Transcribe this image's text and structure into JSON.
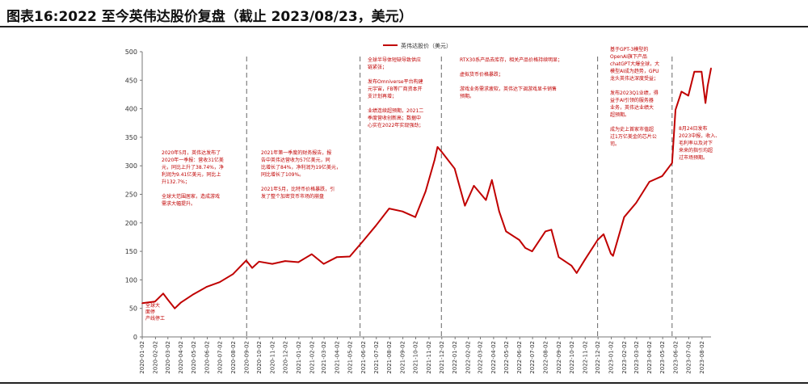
{
  "title": "图表16:2022 至今英伟达股价复盘（截止 2023/08/23，美元）",
  "chart_data": {
    "type": "line",
    "series": [
      {
        "name": "英伟达股价（美元）",
        "color": "#c00000"
      }
    ],
    "ylim": [
      0,
      500
    ],
    "yticks": [
      0,
      50,
      100,
      150,
      200,
      250,
      300,
      350,
      400,
      450,
      500
    ],
    "x_tick_labels": [
      "2020-01-02",
      "2020-02-02",
      "2020-03-02",
      "2020-04-02",
      "2020-05-02",
      "2020-06-02",
      "2020-07-02",
      "2020-08-02",
      "2020-09-02",
      "2020-10-02",
      "2020-11-02",
      "2020-12-02",
      "2021-01-02",
      "2021-02-02",
      "2021-03-02",
      "2021-04-02",
      "2021-05-02",
      "2021-06-02",
      "2021-07-02",
      "2021-08-02",
      "2021-09-02",
      "2021-10-02",
      "2021-11-02",
      "2021-12-02",
      "2022-01-02",
      "2022-02-02",
      "2022-03-02",
      "2022-04-02",
      "2022-05-02",
      "2022-06-02",
      "2022-07-02",
      "2022-08-02",
      "2022-09-02",
      "2022-10-02",
      "2022-11-02",
      "2022-12-02",
      "2023-01-02",
      "2023-02-02",
      "2023-03-02",
      "2023-04-02",
      "2023-05-02",
      "2023-06-02",
      "2023-07-02",
      "2023-08-02"
    ],
    "points": [
      [
        "2020-01-02",
        59
      ],
      [
        "2020-02-01",
        62
      ],
      [
        "2020-02-20",
        76
      ],
      [
        "2020-03-01",
        66
      ],
      [
        "2020-03-18",
        50
      ],
      [
        "2020-04-01",
        60
      ],
      [
        "2020-05-01",
        75
      ],
      [
        "2020-06-01",
        88
      ],
      [
        "2020-07-01",
        96
      ],
      [
        "2020-08-01",
        110
      ],
      [
        "2020-09-01",
        134
      ],
      [
        "2020-09-15",
        121
      ],
      [
        "2020-10-01",
        132
      ],
      [
        "2020-11-01",
        128
      ],
      [
        "2020-12-01",
        133
      ],
      [
        "2021-01-01",
        131
      ],
      [
        "2021-02-01",
        145
      ],
      [
        "2021-03-01",
        128
      ],
      [
        "2021-04-01",
        140
      ],
      [
        "2021-05-01",
        141
      ],
      [
        "2021-06-01",
        168
      ],
      [
        "2021-07-01",
        195
      ],
      [
        "2021-08-01",
        225
      ],
      [
        "2021-09-01",
        220
      ],
      [
        "2021-10-01",
        210
      ],
      [
        "2021-10-25",
        255
      ],
      [
        "2021-11-15",
        310
      ],
      [
        "2021-11-22",
        333
      ],
      [
        "2021-12-01",
        325
      ],
      [
        "2022-01-01",
        295
      ],
      [
        "2022-01-25",
        230
      ],
      [
        "2022-02-15",
        265
      ],
      [
        "2022-03-15",
        240
      ],
      [
        "2022-03-29",
        275
      ],
      [
        "2022-04-15",
        220
      ],
      [
        "2022-05-01",
        185
      ],
      [
        "2022-06-01",
        170
      ],
      [
        "2022-06-15",
        156
      ],
      [
        "2022-07-01",
        150
      ],
      [
        "2022-08-01",
        185
      ],
      [
        "2022-08-15",
        188
      ],
      [
        "2022-09-01",
        140
      ],
      [
        "2022-10-01",
        125
      ],
      [
        "2022-10-13",
        112
      ],
      [
        "2022-11-01",
        135
      ],
      [
        "2022-12-01",
        170
      ],
      [
        "2022-12-15",
        180
      ],
      [
        "2023-01-01",
        146
      ],
      [
        "2023-01-06",
        142
      ],
      [
        "2023-02-01",
        210
      ],
      [
        "2023-03-01",
        235
      ],
      [
        "2023-04-01",
        272
      ],
      [
        "2023-05-01",
        282
      ],
      [
        "2023-05-24",
        305
      ],
      [
        "2023-06-01",
        398
      ],
      [
        "2023-06-15",
        430
      ],
      [
        "2023-07-01",
        423
      ],
      [
        "2023-07-15",
        465
      ],
      [
        "2023-08-01",
        465
      ],
      [
        "2023-08-10",
        410
      ],
      [
        "2023-08-15",
        440
      ],
      [
        "2023-08-23",
        471
      ]
    ],
    "vlines": [
      "2020-09-02",
      "2021-05-25",
      "2021-12-01",
      "2022-12-01",
      "2023-05-24"
    ],
    "annotations": [
      {
        "lines": [
          "全球大",
          "面停",
          "产线停工"
        ]
      },
      {
        "lines": [
          "2020年5月，英伟达发布了",
          "2020年一季报：营收31亿美",
          "元，同比上升了38.74%，净",
          "利润为9.41亿美元，同比上",
          "升132.7%；",
          "",
          "全球大范围居家，造成游戏",
          "需求大幅提升。"
        ]
      },
      {
        "lines": [
          "2021年第一季度的财务报告，报",
          "告中英伟达营收为57亿美元，同",
          "比增长了84%，净利润为19亿美元，",
          "同比增长了109%。",
          "",
          "2021年5月，比特币价格暴跌，引",
          "发了整个加密货币市场的崩盘"
        ]
      },
      {
        "lines": [
          "全球半导体短缺导致供应",
          "链紧张；",
          "",
          "发布Omniverse平台构建",
          "元宇宙，FB等厂商资本开",
          "支计划再增；",
          "",
          "业绩连续超预期，2021二",
          "季度营收创新高；数据中",
          "心实在2022年实现强劲；"
        ]
      },
      {
        "lines": [
          "RTX30系产品去库存，相关产品价格持续明显；",
          "",
          "虚拟货币价格暴跌；",
          "",
          "游戏业务需求疲软，英伟达下调游戏显卡销售",
          "预期。"
        ]
      },
      {
        "lines": [
          "基于GPT-3模型的",
          "OpenAI旗下产品",
          "chatGPT大爆全球，大",
          "模型AI成为趋势，GPU",
          "龙头英伟达深度受益；",
          "",
          "发布2023Q1业绩，得",
          "益于AI引领的服务器",
          "业务，英伟达业绩大",
          "超预期。",
          "",
          "成为史上首家市值超",
          "过1万亿美金的芯片公",
          "司。"
        ]
      },
      {
        "lines": [
          "8月24日发布",
          "2023中报，收入、",
          "毛利率以及对下",
          "来来的指引均超",
          "过市场预期。"
        ]
      }
    ]
  }
}
